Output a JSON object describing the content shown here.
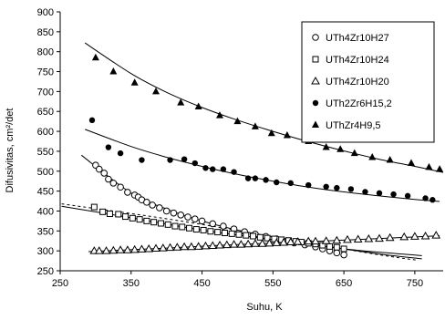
{
  "chart_data": {
    "type": "scatter",
    "title": "",
    "xlabel": "Suhu, K",
    "ylabel": "Difusivitas, cm²/det",
    "xlim": [
      250,
      790
    ],
    "ylim": [
      250,
      900
    ],
    "xticks": [
      250,
      350,
      450,
      550,
      650,
      750
    ],
    "yticks": [
      250,
      300,
      350,
      400,
      450,
      500,
      550,
      600,
      650,
      700,
      750,
      800,
      850,
      900
    ],
    "xtick_labels": [
      "250",
      "350",
      "450",
      "550",
      "650",
      "750"
    ],
    "ytick_labels": [
      "250",
      "300",
      "350",
      "400",
      "450",
      "500",
      "550",
      "600",
      "650",
      "700",
      "750",
      "800",
      "850",
      "900"
    ],
    "grid": false,
    "legend_position": "top-right",
    "series": [
      {
        "name": "UTh4Zr10H27",
        "marker": "circle-open",
        "color": "#000000",
        "points": [
          [
            300,
            515
          ],
          [
            305,
            505
          ],
          [
            312,
            495
          ],
          [
            318,
            480
          ],
          [
            325,
            470
          ],
          [
            335,
            460
          ],
          [
            345,
            447
          ],
          [
            355,
            440
          ],
          [
            360,
            435
          ],
          [
            365,
            428
          ],
          [
            372,
            422
          ],
          [
            380,
            415
          ],
          [
            390,
            408
          ],
          [
            400,
            400
          ],
          [
            410,
            395
          ],
          [
            420,
            390
          ],
          [
            430,
            385
          ],
          [
            440,
            380
          ],
          [
            450,
            375
          ],
          [
            465,
            368
          ],
          [
            480,
            362
          ],
          [
            495,
            355
          ],
          [
            510,
            348
          ],
          [
            525,
            342
          ],
          [
            540,
            336
          ],
          [
            555,
            330
          ],
          [
            570,
            325
          ],
          [
            580,
            320
          ],
          [
            595,
            315
          ],
          [
            610,
            310
          ],
          [
            620,
            305
          ],
          [
            630,
            300
          ],
          [
            640,
            295
          ],
          [
            650,
            290
          ]
        ],
        "fit": [
          [
            280,
            540
          ],
          [
            350,
            445
          ],
          [
            400,
            405
          ],
          [
            450,
            375
          ],
          [
            500,
            352
          ],
          [
            550,
            335
          ],
          [
            600,
            318
          ],
          [
            650,
            305
          ],
          [
            700,
            292
          ],
          [
            760,
            280
          ]
        ]
      },
      {
        "name": "UTh4Zr10H24",
        "marker": "square-open",
        "color": "#000000",
        "points": [
          [
            298,
            410
          ],
          [
            310,
            398
          ],
          [
            320,
            393
          ],
          [
            332,
            392
          ],
          [
            342,
            386
          ],
          [
            352,
            382
          ],
          [
            362,
            379
          ],
          [
            372,
            375
          ],
          [
            382,
            372
          ],
          [
            392,
            369
          ],
          [
            402,
            366
          ],
          [
            412,
            362
          ],
          [
            422,
            360
          ],
          [
            432,
            357
          ],
          [
            442,
            354
          ],
          [
            452,
            352
          ],
          [
            462,
            349
          ],
          [
            472,
            347
          ],
          [
            482,
            345
          ],
          [
            492,
            343
          ],
          [
            502,
            341
          ],
          [
            512,
            339
          ],
          [
            522,
            337
          ],
          [
            532,
            334
          ],
          [
            542,
            332
          ],
          [
            552,
            330
          ],
          [
            562,
            328
          ],
          [
            572,
            326
          ],
          [
            582,
            324
          ],
          [
            590,
            322
          ],
          [
            600,
            319
          ],
          [
            610,
            317
          ],
          [
            620,
            314
          ],
          [
            630,
            311
          ],
          [
            640,
            309
          ],
          [
            650,
            305
          ]
        ],
        "fit": [
          [
            252,
            412
          ],
          [
            350,
            383
          ],
          [
            450,
            352
          ],
          [
            550,
            328
          ],
          [
            650,
            305
          ],
          [
            710,
            295
          ],
          [
            760,
            288
          ]
        ]
      },
      {
        "name": "UTh4Zr10H20",
        "marker": "triangle-open",
        "color": "#000000",
        "points": [
          [
            298,
            300
          ],
          [
            305,
            300
          ],
          [
            315,
            300
          ],
          [
            325,
            301
          ],
          [
            335,
            302
          ],
          [
            345,
            302
          ],
          [
            355,
            303
          ],
          [
            365,
            304
          ],
          [
            375,
            305
          ],
          [
            385,
            306
          ],
          [
            395,
            307
          ],
          [
            405,
            308
          ],
          [
            415,
            309
          ],
          [
            425,
            310
          ],
          [
            435,
            310
          ],
          [
            445,
            311
          ],
          [
            455,
            312
          ],
          [
            465,
            313
          ],
          [
            475,
            314
          ],
          [
            485,
            315
          ],
          [
            495,
            316
          ],
          [
            505,
            316
          ],
          [
            515,
            317
          ],
          [
            525,
            318
          ],
          [
            535,
            318
          ],
          [
            545,
            319
          ],
          [
            555,
            320
          ],
          [
            565,
            321
          ],
          [
            575,
            322
          ],
          [
            585,
            323
          ],
          [
            600,
            324
          ],
          [
            610,
            324
          ],
          [
            625,
            325
          ],
          [
            640,
            326
          ],
          [
            655,
            328
          ],
          [
            670,
            329
          ],
          [
            685,
            330
          ],
          [
            700,
            331
          ],
          [
            715,
            333
          ],
          [
            735,
            335
          ],
          [
            750,
            336
          ],
          [
            765,
            337
          ],
          [
            780,
            339
          ]
        ],
        "fit": [
          [
            290,
            298
          ],
          [
            400,
            307
          ],
          [
            500,
            316
          ],
          [
            600,
            323
          ],
          [
            700,
            331
          ],
          [
            785,
            338
          ]
        ]
      },
      {
        "name": "UTh2Zr6H15,2",
        "marker": "circle-filled",
        "color": "#000000",
        "points": [
          [
            295,
            628
          ],
          [
            318,
            560
          ],
          [
            335,
            545
          ],
          [
            365,
            528
          ],
          [
            405,
            528
          ],
          [
            425,
            530
          ],
          [
            440,
            520
          ],
          [
            455,
            508
          ],
          [
            465,
            505
          ],
          [
            480,
            505
          ],
          [
            495,
            498
          ],
          [
            515,
            482
          ],
          [
            525,
            482
          ],
          [
            540,
            478
          ],
          [
            555,
            472
          ],
          [
            575,
            470
          ],
          [
            600,
            465
          ],
          [
            625,
            461
          ],
          [
            640,
            458
          ],
          [
            660,
            455
          ],
          [
            680,
            448
          ],
          [
            700,
            445
          ],
          [
            720,
            442
          ],
          [
            740,
            438
          ],
          [
            765,
            432
          ],
          [
            775,
            428
          ]
        ],
        "fit": [
          [
            285,
            605
          ],
          [
            350,
            562
          ],
          [
            400,
            535
          ],
          [
            450,
            512
          ],
          [
            500,
            492
          ],
          [
            550,
            475
          ],
          [
            600,
            460
          ],
          [
            650,
            448
          ],
          [
            700,
            438
          ],
          [
            750,
            429
          ],
          [
            785,
            424
          ]
        ]
      },
      {
        "name": "UThZr4H9,5",
        "marker": "triangle-filled",
        "color": "#000000",
        "points": [
          [
            300,
            785
          ],
          [
            325,
            750
          ],
          [
            355,
            722
          ],
          [
            385,
            700
          ],
          [
            420,
            672
          ],
          [
            445,
            662
          ],
          [
            475,
            640
          ],
          [
            500,
            625
          ],
          [
            525,
            612
          ],
          [
            548,
            595
          ],
          [
            570,
            590
          ],
          [
            600,
            575
          ],
          [
            625,
            560
          ],
          [
            645,
            555
          ],
          [
            665,
            545
          ],
          [
            690,
            535
          ],
          [
            715,
            528
          ],
          [
            745,
            520
          ],
          [
            770,
            510
          ],
          [
            785,
            505
          ]
        ],
        "fit": [
          [
            285,
            822
          ],
          [
            350,
            745
          ],
          [
            400,
            698
          ],
          [
            450,
            660
          ],
          [
            500,
            628
          ],
          [
            550,
            600
          ],
          [
            600,
            574
          ],
          [
            650,
            551
          ],
          [
            700,
            530
          ],
          [
            750,
            512
          ],
          [
            790,
            497
          ]
        ]
      }
    ],
    "dashed_line": {
      "points": [
        [
          252,
          418
        ],
        [
          420,
          375
        ],
        [
          600,
          320
        ],
        [
          700,
          290
        ],
        [
          755,
          276
        ]
      ]
    }
  }
}
